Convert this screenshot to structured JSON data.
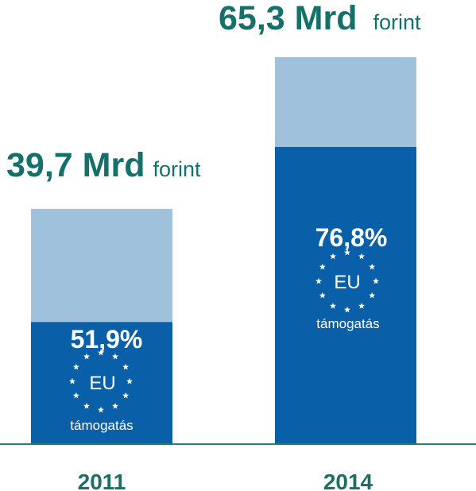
{
  "chart_data": {
    "type": "bar",
    "categories": [
      "2011",
      "2014"
    ],
    "totals": [
      39.7,
      65.3
    ],
    "eu_share_percent": [
      51.9,
      76.8
    ],
    "total_labels": [
      {
        "value": "39,7 Mrd",
        "unit": "forint"
      },
      {
        "value": "65,3 Mrd",
        "unit": "forint"
      }
    ],
    "share_labels": [
      {
        "percent": "51,9%",
        "eu": "EU",
        "caption": "támogatás"
      },
      {
        "percent": "76,8%",
        "eu": "EU",
        "caption": "támogatás"
      }
    ],
    "ylim": [
      0,
      65.3
    ],
    "colors": {
      "eu_share": "#0a60a8",
      "remainder": "#9fc1dc",
      "total_text": "#16706a",
      "year_text": "#1c6e66",
      "axis": "#2c7a74"
    }
  }
}
